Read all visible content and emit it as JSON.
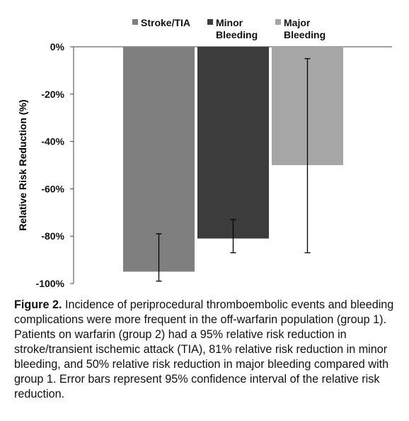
{
  "chart_data": {
    "type": "bar",
    "categories": [
      "Stroke/TIA",
      "Minor Bleeding",
      "Major Bleeding"
    ],
    "values": [
      -95,
      -81,
      -50
    ],
    "error_bars": [
      {
        "low": -99,
        "high": -79
      },
      {
        "low": -87,
        "high": -73
      },
      {
        "low": -87,
        "high": -5
      }
    ],
    "colors": [
      "#7f7f7f",
      "#3c3c3c",
      "#a6a6a6"
    ],
    "legend": [
      {
        "lines": [
          "Stroke/TIA"
        ],
        "color": "#7f7f7f"
      },
      {
        "lines": [
          "Minor",
          "Bleeding"
        ],
        "color": "#3c3c3c"
      },
      {
        "lines": [
          "Major",
          "Bleeding"
        ],
        "color": "#a6a6a6"
      }
    ],
    "legend_position": "top",
    "ylabel": "Relative Risk Reduction (%)",
    "ylim": [
      -100,
      0
    ],
    "yticks": [
      0,
      -20,
      -40,
      -60,
      -80,
      -100
    ],
    "ytick_labels": [
      "0%",
      "-20%",
      "-40%",
      "-60%",
      "-80%",
      "-100%"
    ],
    "grid": false
  },
  "caption": {
    "label": "Figure 2.",
    "text": " Incidence of periprocedural thromboembolic events and bleeding complications were more frequent in the off-warfarin population (group 1). Patients on warfarin (group 2) had a 95% relative risk reduction in stroke/transient ischemic attack (TIA), 81% relative risk reduction in minor bleeding, and 50% relative risk reduction in major bleeding compared with group 1. Error bars represent 95% confidence interval of the relative risk reduction."
  }
}
